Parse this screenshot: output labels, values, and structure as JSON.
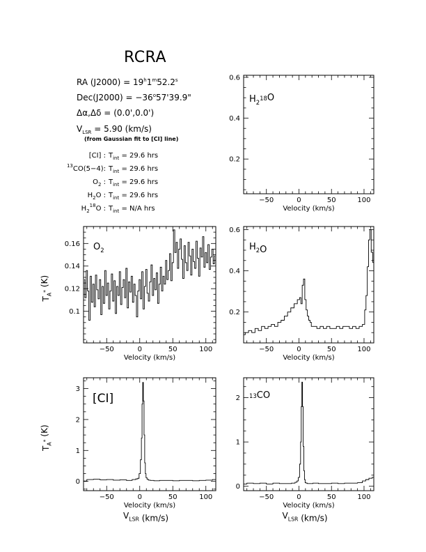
{
  "header": {
    "title": "RCRA",
    "ra_label": "RA (J2000) =",
    "ra_h": "19",
    "ra_h_unit": "h",
    "ra_m": "1",
    "ra_m_unit": "m",
    "ra_s": "52.2",
    "ra_s_unit": "s",
    "dec_label": "Dec(J2000) =",
    "dec_deg": "−36",
    "dec_deg_unit": "o",
    "dec_rest": "57'39.9\"",
    "offset_label": "Δα,Δδ =",
    "offset_value": "(0.0',0.0')",
    "vlsr_main": "V",
    "vlsr_sub": "LSR",
    "vlsr_value": "= 5.90  (km/s)",
    "fit_note": "(from Gaussian fit to [CI] line)",
    "tint_sub": "int",
    "integrations": [
      {
        "pre": "",
        "sup": "",
        "name": "[CI] :",
        "value": "= 29.6 hrs"
      },
      {
        "pre": "",
        "sup": "13",
        "name": "CO(5−4):",
        "value": "= 29.6 hrs"
      },
      {
        "pre": "O",
        "sub": "2",
        "name": " :",
        "value": "= 29.6 hrs"
      },
      {
        "pre": "H",
        "sub": "2",
        "name": "O :",
        "value": "= 29.6 hrs"
      },
      {
        "pre": "H",
        "sub": "2",
        "sup": "18",
        "name": "O :",
        "value": "= N/A hrs"
      }
    ]
  },
  "common": {
    "xlabel": "Velocity (km/s)",
    "xlabel2": "V",
    "xlabel2_sub": "LSR",
    "xlabel2_rest": "(km/s)",
    "ylabel_main": "T",
    "ylabel_sub": "A",
    "ylabel_sup": "*",
    "ylabel_rest": "(K)"
  },
  "colors": {
    "ink": "#000000",
    "background": "#ffffff"
  },
  "chart_data": [
    {
      "id": "h2_18o",
      "type": "line",
      "label_main": "H",
      "label_sub": "2",
      "label_sup": "18",
      "label_rest": "O",
      "xlim": [
        -85,
        115
      ],
      "ylim": [
        0.03,
        0.61
      ],
      "xticks": [
        -50,
        0,
        50,
        100
      ],
      "yticks": [
        0.2,
        0.4,
        0.6
      ],
      "series": []
    },
    {
      "id": "o2",
      "type": "line",
      "label_main": "O",
      "label_sub": "2",
      "xlim": [
        -85,
        115
      ],
      "ylim": [
        0.072,
        0.175
      ],
      "xticks": [
        -50,
        0,
        50,
        100
      ],
      "yticks": [
        0.1,
        0.12,
        0.14,
        0.16
      ],
      "series": [
        {
          "x": [
            -84,
            -82,
            -80,
            -78,
            -76,
            -74,
            -72,
            -70,
            -68,
            -66,
            -64,
            -62,
            -60,
            -58,
            -56,
            -54,
            -52,
            -50,
            -48,
            -46,
            -44,
            -42,
            -40,
            -38,
            -36,
            -34,
            -32,
            -30,
            -28,
            -26,
            -24,
            -22,
            -20,
            -18,
            -16,
            -14,
            -12,
            -10,
            -8,
            -6,
            -4,
            -2,
            0,
            2,
            4,
            6,
            8,
            10,
            12,
            14,
            16,
            18,
            20,
            22,
            24,
            26,
            28,
            30,
            32,
            34,
            36,
            38,
            40,
            42,
            44,
            46,
            48,
            50,
            52,
            54,
            56,
            58,
            60,
            62,
            64,
            66,
            68,
            70,
            72,
            74,
            76,
            78,
            80,
            82,
            84,
            86,
            88,
            90,
            92,
            94,
            96,
            98,
            100,
            102,
            104,
            106,
            108,
            110,
            112,
            114
          ],
          "y": [
            0.128,
            0.112,
            0.136,
            0.118,
            0.092,
            0.131,
            0.108,
            0.124,
            0.104,
            0.132,
            0.119,
            0.111,
            0.128,
            0.097,
            0.122,
            0.107,
            0.136,
            0.114,
            0.125,
            0.102,
            0.118,
            0.133,
            0.109,
            0.127,
            0.098,
            0.122,
            0.114,
            0.135,
            0.106,
            0.121,
            0.128,
            0.112,
            0.138,
            0.103,
            0.126,
            0.117,
            0.131,
            0.108,
            0.124,
            0.114,
            0.095,
            0.118,
            0.128,
            0.111,
            0.135,
            0.102,
            0.122,
            0.137,
            0.116,
            0.109,
            0.126,
            0.141,
            0.114,
            0.129,
            0.119,
            0.134,
            0.107,
            0.124,
            0.139,
            0.118,
            0.131,
            0.124,
            0.145,
            0.128,
            0.136,
            0.151,
            0.127,
            0.143,
            0.172,
            0.152,
            0.161,
            0.138,
            0.155,
            0.164,
            0.146,
            0.129,
            0.158,
            0.143,
            0.136,
            0.161,
            0.149,
            0.132,
            0.155,
            0.144,
            0.138,
            0.162,
            0.147,
            0.131,
            0.156,
            0.148,
            0.166,
            0.139,
            0.152,
            0.143,
            0.159,
            0.137,
            0.148,
            0.155,
            0.142,
            0.149
          ]
        }
      ]
    },
    {
      "id": "h2o",
      "type": "line",
      "label_main": "H",
      "label_sub": "2",
      "label_rest": "O",
      "xlim": [
        -85,
        115
      ],
      "ylim": [
        0.05,
        0.615
      ],
      "xticks": [
        -50,
        0,
        50,
        100
      ],
      "yticks": [
        0.2,
        0.4,
        0.6
      ],
      "series": [
        {
          "x": [
            -85,
            -80,
            -75,
            -70,
            -65,
            -60,
            -55,
            -50,
            -45,
            -40,
            -35,
            -30,
            -25,
            -20,
            -15,
            -10,
            -5,
            0,
            2,
            4,
            6,
            8,
            10,
            12,
            14,
            16,
            18,
            20,
            25,
            30,
            35,
            40,
            45,
            50,
            55,
            60,
            65,
            70,
            75,
            80,
            85,
            90,
            95,
            100,
            102,
            104,
            106,
            108,
            110,
            112,
            115
          ],
          "y": [
            0.09,
            0.1,
            0.11,
            0.1,
            0.12,
            0.11,
            0.13,
            0.12,
            0.13,
            0.14,
            0.13,
            0.15,
            0.16,
            0.18,
            0.2,
            0.22,
            0.24,
            0.26,
            0.27,
            0.24,
            0.33,
            0.36,
            0.26,
            0.21,
            0.18,
            0.16,
            0.15,
            0.13,
            0.13,
            0.12,
            0.13,
            0.12,
            0.13,
            0.12,
            0.12,
            0.13,
            0.12,
            0.13,
            0.13,
            0.12,
            0.13,
            0.12,
            0.13,
            0.14,
            0.21,
            0.28,
            0.42,
            0.55,
            0.6,
            0.49,
            0.44
          ]
        }
      ]
    },
    {
      "id": "ci",
      "type": "line",
      "label": "[CI]",
      "xlim": [
        -85,
        115
      ],
      "ylim": [
        -0.3,
        3.35
      ],
      "xticks": [
        -50,
        0,
        50,
        100
      ],
      "yticks": [
        0,
        1,
        2,
        3
      ],
      "series": [
        {
          "x": [
            -85,
            -75,
            -65,
            -55,
            -45,
            -35,
            -25,
            -15,
            -8,
            -4,
            -2,
            0,
            2,
            3,
            4,
            5,
            6,
            7,
            8,
            9,
            10,
            12,
            14,
            18,
            25,
            35,
            45,
            55,
            65,
            75,
            85,
            95,
            105,
            115
          ],
          "y": [
            0.01,
            0.06,
            0.07,
            0.05,
            0.06,
            0.04,
            0.05,
            0.03,
            0.06,
            0.08,
            0.1,
            0.25,
            0.7,
            1.4,
            2.5,
            3.2,
            2.6,
            1.5,
            0.6,
            0.25,
            0.12,
            0.07,
            0.04,
            0.03,
            0.02,
            0.03,
            0.03,
            0.02,
            0.03,
            0.03,
            0.02,
            0.03,
            0.04,
            0.06
          ]
        }
      ]
    },
    {
      "id": "13co",
      "type": "line",
      "label_sup": "13",
      "label_rest": "CO",
      "xlim": [
        -85,
        115
      ],
      "ylim": [
        -0.1,
        2.45
      ],
      "xticks": [
        -50,
        0,
        50,
        100
      ],
      "yticks": [
        0,
        1,
        2
      ],
      "series": [
        {
          "x": [
            -85,
            -75,
            -65,
            -55,
            -45,
            -35,
            -25,
            -15,
            -8,
            -4,
            -2,
            0,
            2,
            3,
            4,
            5,
            6,
            7,
            8,
            9,
            10,
            12,
            14,
            18,
            25,
            35,
            45,
            55,
            65,
            75,
            85,
            95,
            100,
            105,
            110,
            115
          ],
          "y": [
            0.05,
            0.07,
            0.06,
            0.07,
            0.05,
            0.07,
            0.06,
            0.06,
            0.07,
            0.09,
            0.12,
            0.2,
            0.5,
            1.0,
            1.8,
            2.35,
            1.8,
            0.9,
            0.35,
            0.15,
            0.08,
            0.07,
            0.06,
            0.06,
            0.07,
            0.06,
            0.06,
            0.07,
            0.06,
            0.07,
            0.07,
            0.08,
            0.12,
            0.15,
            0.18,
            0.2
          ]
        }
      ]
    }
  ]
}
